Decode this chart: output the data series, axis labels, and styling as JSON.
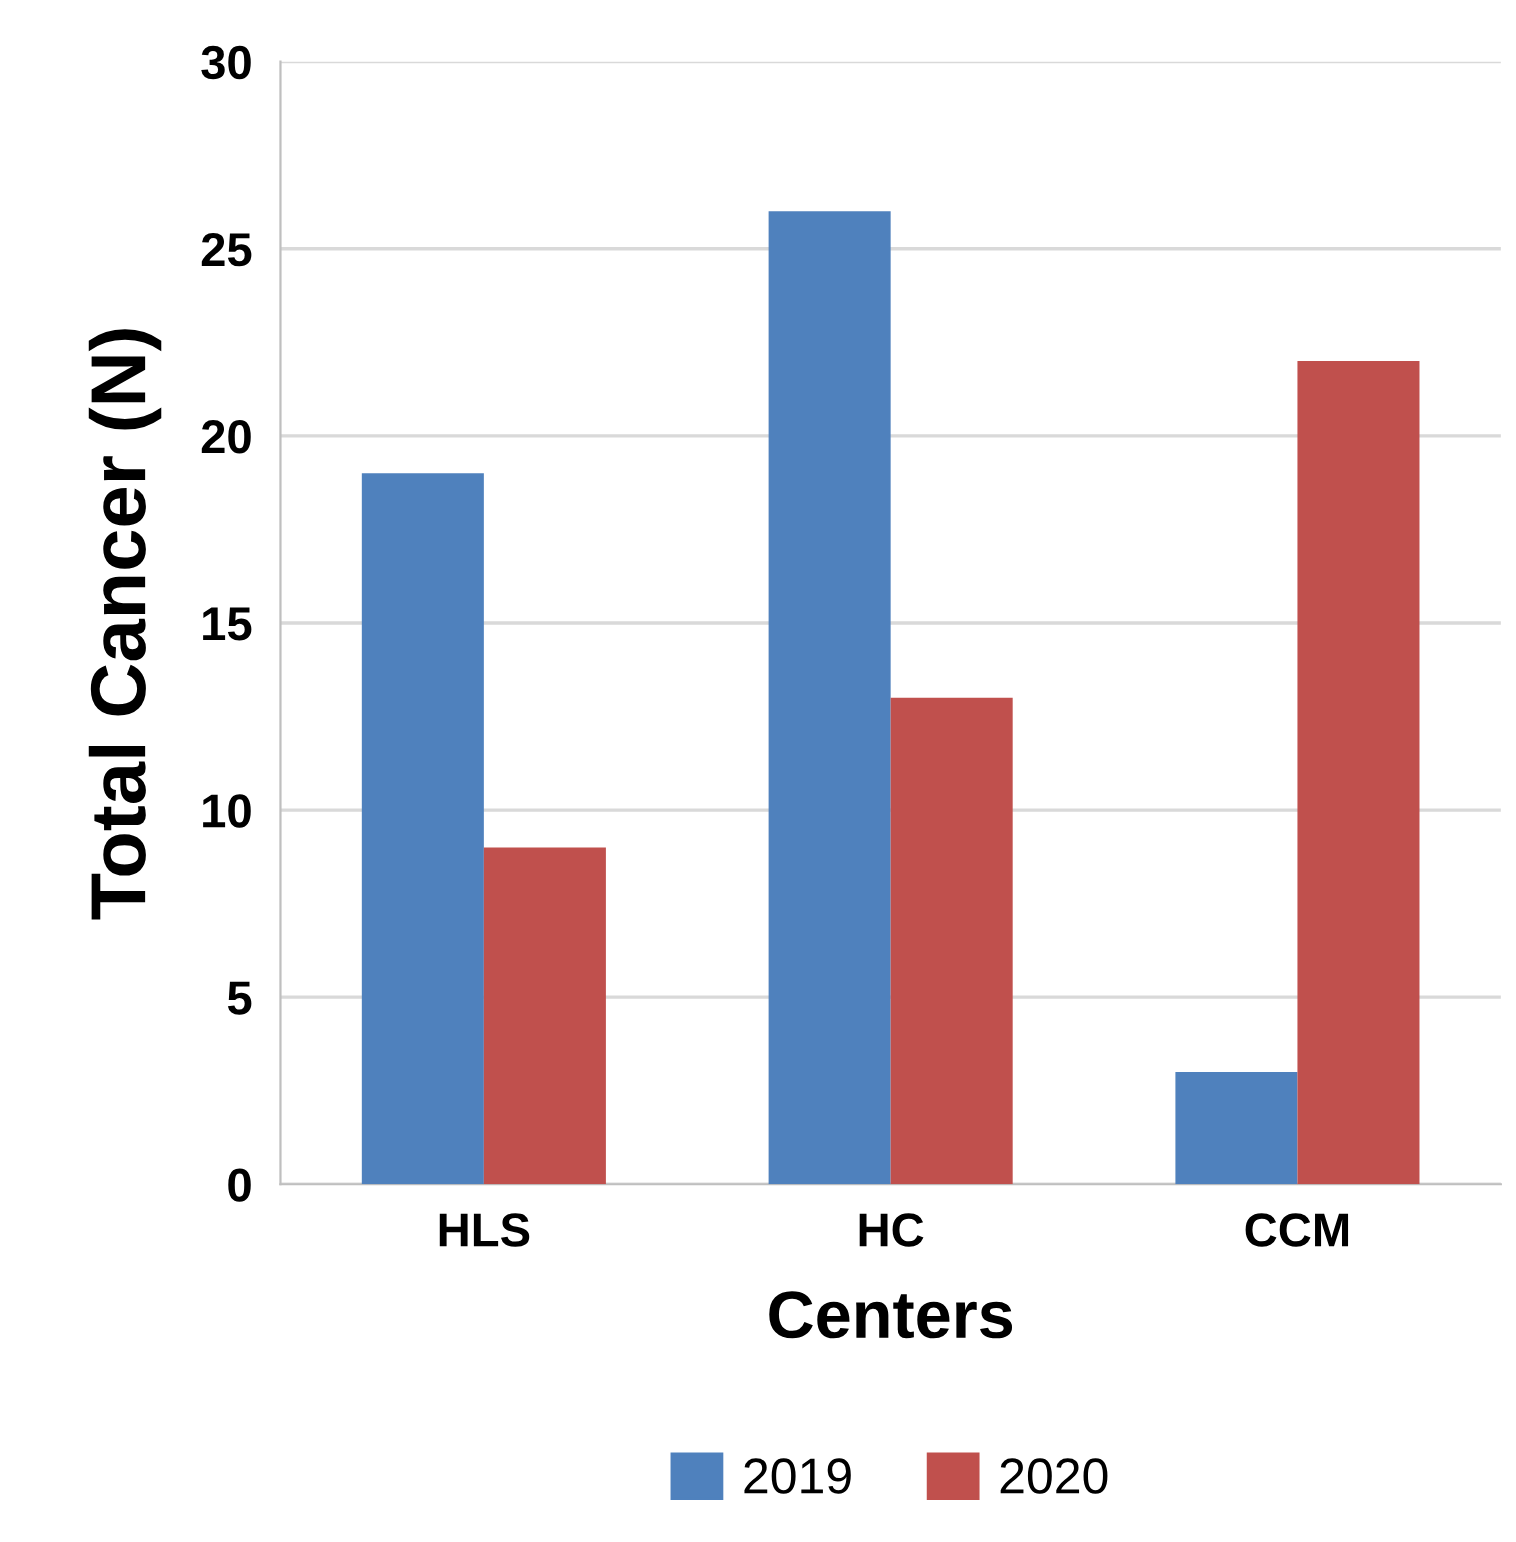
{
  "chart_data": {
    "type": "bar",
    "xlabel": "Centers",
    "ylabel": "Total Cancer (N)",
    "categories": [
      "HLS",
      "HC",
      "CCM"
    ],
    "series": [
      {
        "name": "2019",
        "color": "#4f81bd",
        "values": [
          19,
          26,
          3
        ]
      },
      {
        "name": "2020",
        "color": "#c0504d",
        "values": [
          9,
          13,
          22
        ]
      }
    ],
    "ylim": [
      0,
      30
    ],
    "yticks": [
      0,
      5,
      10,
      15,
      20,
      25,
      30
    ],
    "grid": "y",
    "legend": "bottom"
  }
}
